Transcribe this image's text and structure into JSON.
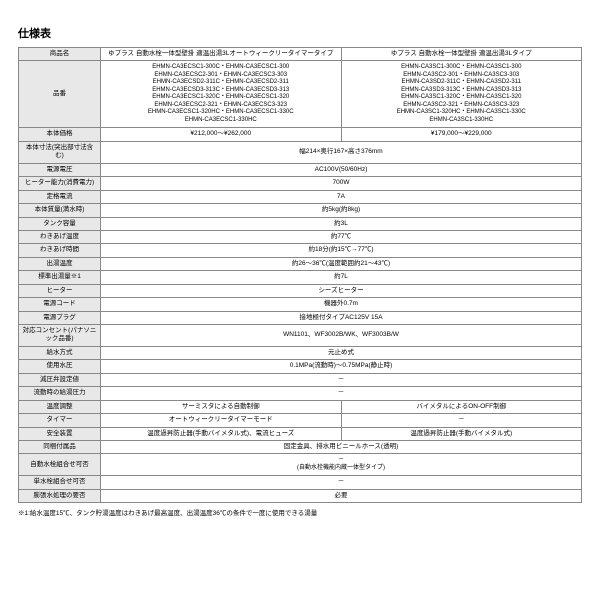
{
  "title": "仕様表",
  "columns": {
    "label": "商品名",
    "col1": "ゆプラス 自動水栓一体型壁掛 適温出湯3Lオートウィークリータイマータイプ",
    "col2": "ゆプラス 自動水栓一体型壁掛 適温出湯3Lタイプ"
  },
  "product_codes": {
    "label": "品番",
    "col1": "EHMN-CA3ECSC1-300C・EHMN-CA3ECSC1-300\nEHMN-CA3ECSC2-301・EHMN-CA3ECSC3-303\nEHMN-CA3ECSD2-311C・EHMN-CA3ECSD2-311\nEHMN-CA3ECSD3-313C・EHMN-CA3ECSD3-313\nEHMN-CA3ECSC1-320C・EHMN-CA3ECSC1-320\nEHMN-CA3ECSC2-321・EHMN-CA3ECSC3-323\nEHMN-CA3ECSC1-320HC・EHMN-CA3ECSC1-330C\nEHMN-CA3ECSC1-330HC",
    "col2": "EHMN-CA3SC1-300C・EHMN-CA3SC1-300\nEHMN-CA3SC2-301・EHMN-CA3SC3-303\nEHMN-CA3SD2-311C・EHMN-CA3SD2-311\nEHMN-CA3SD3-313C・EHMN-CA3SD3-313\nEHMN-CA3SC1-320C・EHMN-CA3SC1-320\nEHMN-CA3SC2-321・EHMN-CA3SC3-323\nEHMN-CA3SC1-320HC・EHMN-CA3SC1-330C\nEHMN-CA3SC1-330HC"
  },
  "rows": [
    {
      "label": "本体価格",
      "col1": "¥212,000～¥262,000",
      "col2": "¥179,000～¥229,000"
    },
    {
      "label": "本体寸法(突出部寸法含む)",
      "span": "幅214×奥行167×高さ376mm"
    },
    {
      "label": "電源電圧",
      "span": "AC100V(50/60Hz)"
    },
    {
      "label": "ヒーター能力(消費電力)",
      "span": "700W"
    },
    {
      "label": "定格電流",
      "span": "7A"
    },
    {
      "label": "本体質量(満水時)",
      "span": "約5kg(約8kg)"
    },
    {
      "label": "タンク容量",
      "span": "約3L"
    },
    {
      "label": "わきあげ温度",
      "span": "約77℃"
    },
    {
      "label": "わきあげ時間",
      "span": "約18分(約15℃→77℃)"
    },
    {
      "label": "出湯温度",
      "span": "約26～36℃(温度範囲約21～43℃)"
    },
    {
      "label": "標準出湯量※1",
      "span": "約7L"
    },
    {
      "label": "ヒーター",
      "span": "シーズヒーター"
    },
    {
      "label": "電源コード",
      "span": "機器外0.7m"
    },
    {
      "label": "電源プラグ",
      "span": "接地極付タイプAC125V 15A"
    },
    {
      "label": "対応コンセント(パナソニック品番)",
      "span": "WN1101、WF3002B/WK、WF3003B/W"
    },
    {
      "label": "給水方式",
      "span": "元止め式"
    },
    {
      "label": "使用水圧",
      "span": "0.1MPa(流動時)～0.75MPa(静止時)"
    },
    {
      "label": "減圧弁設定値",
      "span": "－"
    },
    {
      "label": "流動時の給湯圧力",
      "span": "－"
    },
    {
      "label": "温度調整",
      "col1": "サーミスタによる自動制御",
      "col2": "バイメタルによるON-OFF制御"
    },
    {
      "label": "タイマー",
      "col1": "オートウィークリータイマーモード",
      "col2": "－"
    },
    {
      "label": "安全装置",
      "col1": "温度過昇防止器(手動バイメタル式)、電流ヒューズ",
      "col2": "温度過昇防止器(手動バイメタル式)"
    },
    {
      "label": "同梱付属品",
      "span": "固定金具、排水用ビニールホース(透明)"
    },
    {
      "label": "自動水栓組合せ可否",
      "span": "－\n(自動水栓機能内蔵一体型タイプ)"
    },
    {
      "label": "単水栓組合せ可否",
      "span": "－"
    },
    {
      "label": "膨張水処理の要否",
      "span": "必要"
    }
  ],
  "footnote": "※1:給水温度15℃、タンク貯湯温度はわきあげ最高温度、出湯温度36℃の条件で一度に使用できる湯量"
}
